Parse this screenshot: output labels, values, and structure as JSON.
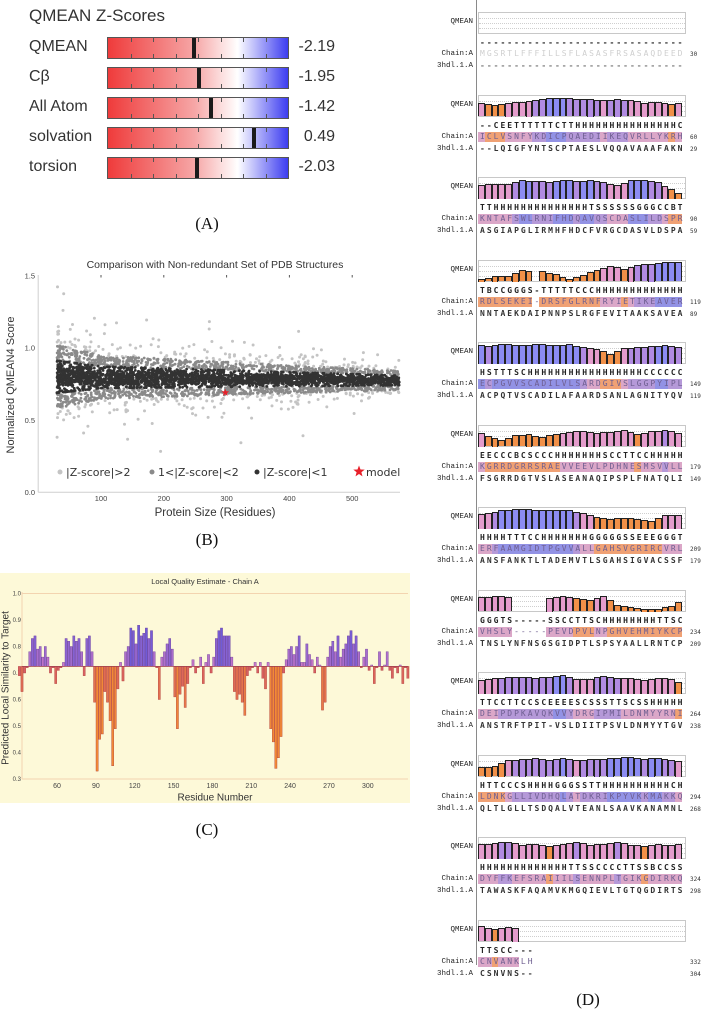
{
  "panel_labels": {
    "a": "(A)",
    "b": "(B)",
    "c": "(C)",
    "d": "(D)"
  },
  "chart_data": [
    {
      "type": "bar",
      "title": "QMEAN Z-Scores",
      "categories": [
        "QMEAN",
        "Cβ",
        "All Atom",
        "solvation",
        "torsion"
      ],
      "values": [
        -2.19,
        -1.95,
        -1.42,
        0.49,
        -2.03
      ],
      "value_labels": [
        "-2.19",
        "-1.95",
        "-1.42",
        "0.49",
        "-2.03"
      ],
      "range": [
        -6,
        2
      ],
      "colors": {
        "low": "#ef3b3b",
        "mid": "#ffffff",
        "high": "#3c3cf0"
      }
    },
    {
      "type": "scatter",
      "title": "Comparison with Non-redundant Set of PDB Structures",
      "xlabel": "Protein Size (Residues)",
      "ylabel": "Normalized QMEAN4 Score",
      "xlim": [
        0,
        575
      ],
      "ylim": [
        0,
        1.5
      ],
      "xticks": [
        "100",
        "200",
        "300",
        "400",
        "500"
      ],
      "yticks": [
        "0.0",
        "0.5",
        "1.0",
        "1.5"
      ],
      "legend": [
        "|Z-score|>2",
        "1<|Z-score|<2",
        "|Z-score|<1",
        "model"
      ],
      "legend_placement": "bottom",
      "model": {
        "x": 298,
        "y": 0.69
      },
      "reference_cloud": {
        "x_range": [
          30,
          575
        ],
        "center_start": 0.8,
        "center_end": 0.775,
        "sd_at_100": 0.075,
        "sd_at_550": 0.035
      },
      "colors": {
        "z_gt2": "#c4c4c4",
        "z_1_2": "#8a8a8a",
        "z_lt1": "#333333",
        "model": "#e8202a"
      }
    },
    {
      "type": "bar",
      "title": "Local Quality Estimate - Chain A",
      "xlabel": "Residue Number",
      "ylabel": "Predicted Local Similarity to Target",
      "ylim": [
        0.3,
        1.0
      ],
      "baseline": 0.725,
      "x_start": 31,
      "x_step": 2,
      "xticks": [
        "60",
        "90",
        "120",
        "150",
        "180",
        "210",
        "240",
        "270",
        "300"
      ],
      "yticks": [
        "1.0",
        "0.9",
        "0.8",
        "0.7",
        "0.6",
        "0.5",
        "0.4",
        "0.3"
      ],
      "values": [
        0.69,
        0.63,
        0.7,
        0.72,
        0.78,
        0.83,
        0.84,
        0.79,
        0.8,
        0.76,
        0.8,
        0.76,
        0.7,
        0.72,
        0.66,
        0.71,
        0.72,
        0.74,
        0.83,
        0.82,
        0.8,
        0.84,
        0.82,
        0.83,
        0.78,
        0.69,
        0.83,
        0.84,
        0.78,
        0.59,
        0.33,
        0.45,
        0.47,
        0.63,
        0.59,
        0.52,
        0.35,
        0.49,
        0.64,
        0.74,
        0.67,
        0.78,
        0.8,
        0.87,
        0.86,
        0.81,
        0.88,
        0.84,
        0.85,
        0.87,
        0.83,
        0.86,
        0.78,
        0.72,
        0.6,
        0.76,
        0.78,
        0.81,
        0.83,
        0.79,
        0.61,
        0.49,
        0.62,
        0.65,
        0.57,
        0.66,
        0.72,
        0.75,
        0.7,
        0.72,
        0.76,
        0.66,
        0.74,
        0.77,
        0.7,
        0.76,
        0.83,
        0.86,
        0.87,
        0.84,
        0.84,
        0.84,
        0.76,
        0.63,
        0.6,
        0.62,
        0.59,
        0.54,
        0.69,
        0.71,
        0.72,
        0.74,
        0.7,
        0.74,
        0.68,
        0.64,
        0.74,
        0.49,
        0.44,
        0.34,
        0.38,
        0.46,
        0.7,
        0.75,
        0.79,
        0.8,
        0.77,
        0.8,
        0.84,
        0.74,
        0.74,
        0.81,
        0.77,
        0.75,
        0.7,
        0.76,
        0.73,
        0.56,
        0.59,
        0.76,
        0.8,
        0.82,
        0.78,
        0.84,
        0.76,
        0.79,
        0.81,
        0.84,
        0.86,
        0.81,
        0.84,
        0.78,
        0.72,
        0.76,
        0.79,
        0.71,
        0.73,
        0.66,
        0.72,
        0.78,
        0.71,
        0.73,
        0.78,
        0.71,
        0.68,
        0.72,
        0.7,
        0.73,
        0.66,
        0.72,
        0.68
      ]
    }
  ],
  "alignment": {
    "labels": {
      "qmean": "QMEAN",
      "chain": "Chain:A",
      "template": "3hdl.1.A"
    },
    "blocks": [
      {
        "ss": "------------------------------",
        "chain": "MGSRTLFFFILLSFLASASFRSASAQDEED",
        "template": "------------------------------",
        "chain_end": "30",
        "template_end": ""
      },
      {
        "ss": "--CEETTTTTTCTTHHHHHHHHHHHHHHHC",
        "chain": "ICLVSNFYKDICPQAEDIIKEQVRLLYKRH",
        "template": "--LQIGFYNTSCPTAESLVQQAVAAAFAKN",
        "chain_end": "60",
        "template_end": "29"
      },
      {
        "ss": "TTHHHHHHHHHHHHHHTSSSSSSGGGCCBT",
        "chain": "KNTAFSWLRNIFHDQAVQSCDASLILDSPR",
        "template": "ASGIAPGLIRMHFHDCFVRGCDASVLDSPA",
        "chain_end": "90",
        "template_end": "59"
      },
      {
        "ss": "TBCCGGGS-TTTTTCCCHHHHHHHHHHHHH",
        "chain": "RDLSEKEI-DRSFGLRNFRYIETIKEAVER",
        "template": "NNTAEKDAIPNNPSLRGFEVITAAKSAVEA",
        "chain_end": "119",
        "template_end": "89"
      },
      {
        "ss": "HSTTTSCHHHHHHHHHHHHHHHHHCCCCCC",
        "chain": "ECPGVVSCADILVLSARDGIVSLGGPYIPL",
        "template": "ACPQTVSCADILAFAARDSANLAGNITYQV",
        "chain_end": "149",
        "template_end": "119"
      },
      {
        "ss": "EECCCBCSCCCHHHHHHHSCCTTCCHHHHH",
        "chain": "KGRRDGRRSRAEVVEEVLPDHNESMSVVLL",
        "template": "FSGRRDGTVSLASEANAQIPSPLFNATQLI",
        "chain_end": "179",
        "template_end": "149"
      },
      {
        "ss": "HHHHTTTCCHHHHHHHGGGGGSSEEEGGGT",
        "chain": "ERFAAMGIDTPGVVALLGAHSVGRIRCVRL",
        "template": "ANSFANKTLTADEMVTLSGAHSIGVACSSF",
        "chain_end": "209",
        "template_end": "179"
      },
      {
        "ss": "GGGTS-----SSCCTTSCHHHHHHHHTTSC",
        "chain": "VHSLY-----PEVDPVLNPGHVEHMIYKCP",
        "template": "TNSLYNFNSGSGIDPTLSPSYAALLRNTCP",
        "chain_end": "234",
        "template_end": "209"
      },
      {
        "ss": "TTCCTTCCSCEEEESCSSSTTSCSSHHHHH",
        "chain": "DEIPDPKAVQKVVYDRGIPMILDNMYYRNI",
        "template": "ANSTRFTPIT-VSLDIITPSVLDNMYYTGV",
        "chain_end": "264",
        "template_end": "238"
      },
      {
        "ss": "HTTCCCSHHHHGGGSSTTHHHHHHHHHHCH",
        "chain": "LDNKGLLIVDHQLATDKRIKPYVKKMAKKQ",
        "template": "QLTLGLLTSDQALVTEANLSAAVKANAMNL",
        "chain_end": "294",
        "template_end": "268"
      },
      {
        "ss": "HHHHHHHHHHHHHTTSSCCCCTTSSBCCSS",
        "chain": "DYFFKEFSRAIIILSENNPLTGIKGDIRKQ",
        "template": "TAWASKFAQAMVKMGQIEVLTGTQGDIRTS",
        "chain_end": "324",
        "template_end": "298"
      },
      {
        "ss": "TTSCC---",
        "chain": "CNVANKLH",
        "template": "CSNVNS--",
        "chain_end": "332",
        "template_end": "304"
      }
    ]
  }
}
